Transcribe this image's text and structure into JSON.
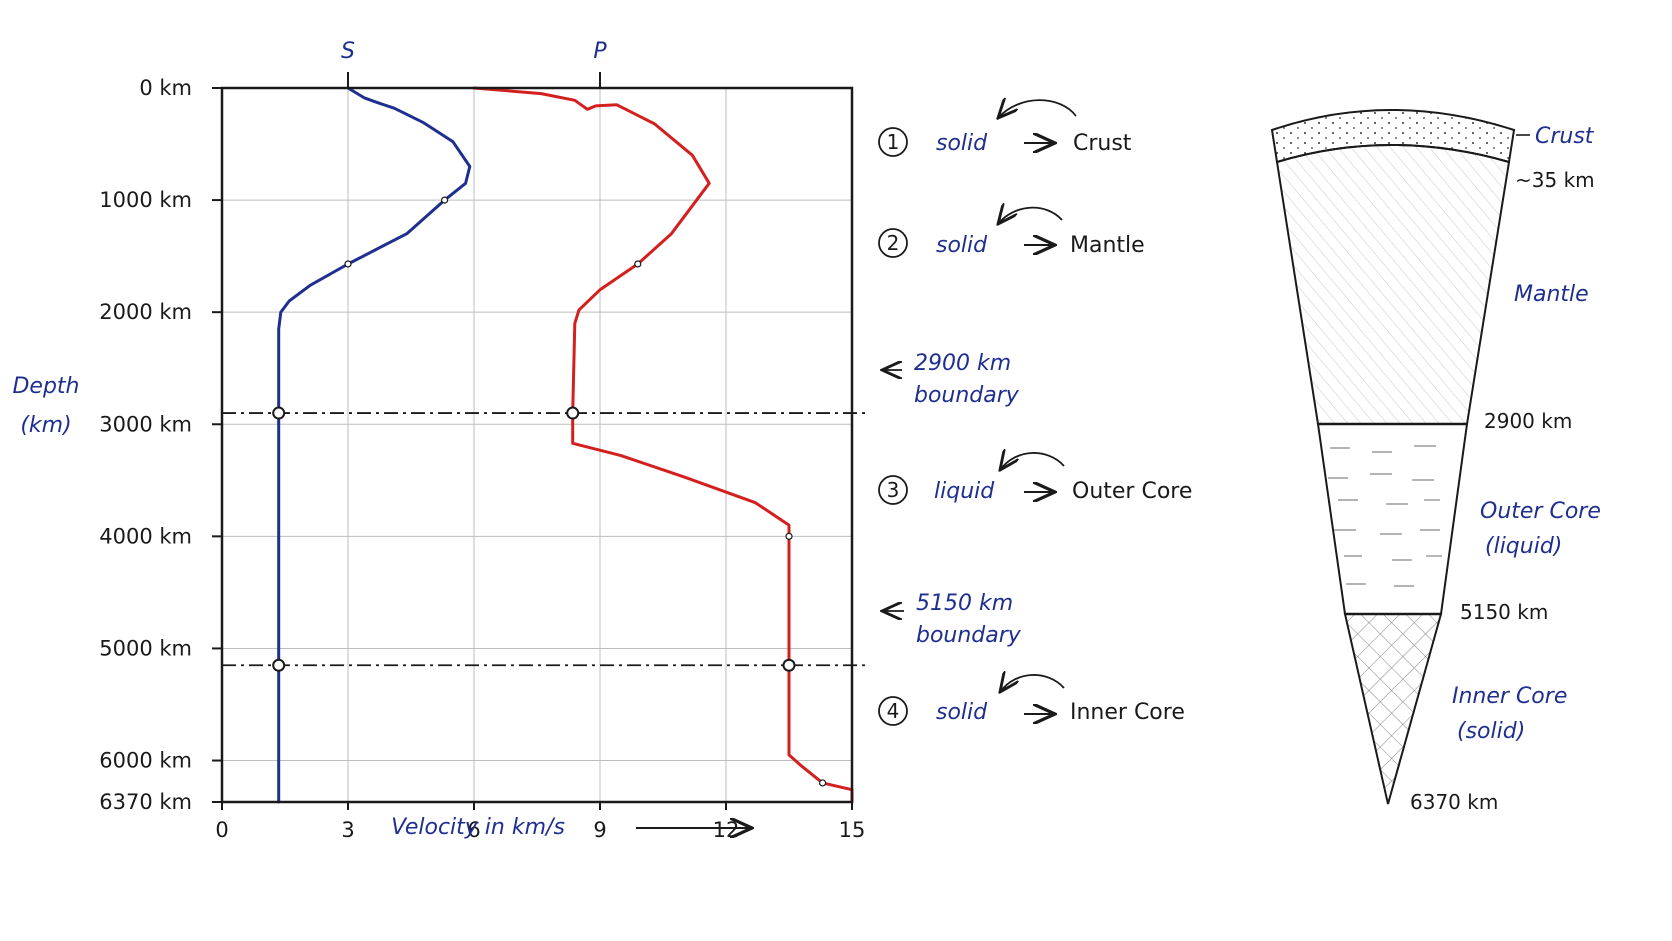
{
  "chart_data": {
    "type": "line",
    "xlabel": "Velocity in km/s",
    "ylabel_line1": "Depth",
    "ylabel_line2": "(km)",
    "xlim": [
      0,
      15
    ],
    "ylim": [
      0,
      6370
    ],
    "x_ticks": [
      0,
      3,
      6,
      9,
      12,
      15
    ],
    "y_ticks": [
      {
        "value": 0,
        "label": "0 km"
      },
      {
        "value": 1000,
        "label": "1000 km"
      },
      {
        "value": 2000,
        "label": "2000 km"
      },
      {
        "value": 3000,
        "label": "3000 km"
      },
      {
        "value": 4000,
        "label": "4000 km"
      },
      {
        "value": 5000,
        "label": "5000 km"
      },
      {
        "value": 6000,
        "label": "6000 km"
      },
      {
        "value": 6370,
        "label": "6370 km"
      }
    ],
    "grid": true,
    "series": [
      {
        "name": "S",
        "color": "#1f2f8f",
        "points": [
          [
            3.0,
            0
          ],
          [
            3.4,
            90
          ],
          [
            3.7,
            130
          ],
          [
            4.1,
            180
          ],
          [
            4.8,
            310
          ],
          [
            5.5,
            480
          ],
          [
            5.9,
            700
          ],
          [
            5.8,
            850
          ],
          [
            5.3,
            1000
          ],
          [
            4.4,
            1300
          ],
          [
            3.0,
            1570
          ],
          [
            2.1,
            1760
          ],
          [
            1.6,
            1900
          ],
          [
            1.4,
            2000
          ],
          [
            1.35,
            2150
          ],
          [
            1.35,
            3000
          ],
          [
            1.35,
            5000
          ],
          [
            1.35,
            6370
          ]
        ]
      },
      {
        "name": "P",
        "color": "#d41f1f",
        "points": [
          [
            6.0,
            0
          ],
          [
            7.6,
            50
          ],
          [
            8.4,
            110
          ],
          [
            8.7,
            190
          ],
          [
            8.9,
            160
          ],
          [
            9.4,
            150
          ],
          [
            10.3,
            320
          ],
          [
            11.2,
            600
          ],
          [
            11.6,
            850
          ],
          [
            11.2,
            1050
          ],
          [
            10.7,
            1300
          ],
          [
            9.9,
            1570
          ],
          [
            9.0,
            1800
          ],
          [
            8.5,
            1980
          ],
          [
            8.4,
            2100
          ],
          [
            8.35,
            2900
          ],
          [
            8.35,
            3170
          ],
          [
            9.5,
            3280
          ],
          [
            11.0,
            3470
          ],
          [
            12.7,
            3700
          ],
          [
            13.5,
            3900
          ],
          [
            13.5,
            5000
          ],
          [
            13.5,
            5950
          ],
          [
            13.8,
            6050
          ],
          [
            14.3,
            6200
          ],
          [
            15.0,
            6260
          ],
          [
            15.0,
            6370
          ]
        ]
      }
    ],
    "markers": [
      {
        "series": "S",
        "x": 3.0,
        "y": 1570
      },
      {
        "series": "S",
        "x": 1.35,
        "y": 2900
      },
      {
        "series": "S",
        "x": 1.35,
        "y": 5150
      },
      {
        "series": "P",
        "x": 8.35,
        "y": 2900
      },
      {
        "series": "P",
        "x": 13.5,
        "y": 5150
      },
      {
        "series": "P",
        "x": 9.9,
        "y": 1570
      },
      {
        "series": "P",
        "x": 13.5,
        "y": 4000
      },
      {
        "series": "P",
        "x": 14.3,
        "y": 6200
      },
      {
        "series": "S",
        "x": 5.3,
        "y": 1000
      }
    ],
    "boundaries": [
      {
        "depth": 2900,
        "text1": "2900 km",
        "text2": "boundary"
      },
      {
        "depth": 5150,
        "text1": "5150 km",
        "text2": "boundary"
      }
    ]
  },
  "layers_notes": [
    {
      "num": "1",
      "state": "solid",
      "layer": "Crust"
    },
    {
      "num": "2",
      "state": "solid",
      "layer": "Mantle"
    },
    {
      "num": "3",
      "state": "liquid",
      "layer": "Outer Core"
    },
    {
      "num": "4",
      "state": "solid",
      "layer": "Inner Core"
    }
  ],
  "wedge": {
    "crust_label": "Crust",
    "crust_depth": "~35 km",
    "mantle_label": "Mantle",
    "mantle_depth": "2900 km",
    "outer_core_label1": "Outer Core",
    "outer_core_label2": "(liquid)",
    "outer_core_depth": "5150 km",
    "inner_core_label1": "Inner Core",
    "inner_core_label2": "(solid)",
    "center_depth": "6370 km"
  }
}
